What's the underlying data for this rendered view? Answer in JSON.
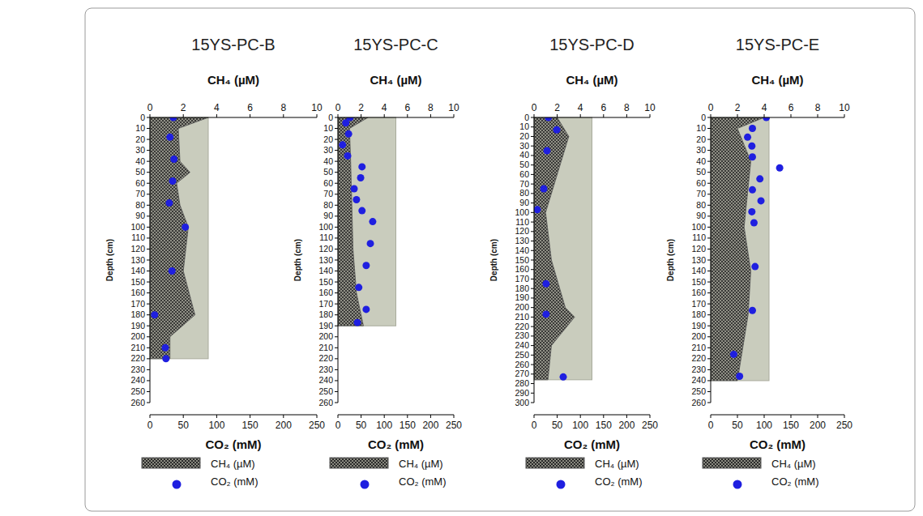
{
  "chart_data": [
    {
      "type": "depth_profile",
      "title": "15YS-PC-B",
      "xlabel": "CH₄ (µM)",
      "x2label": "CO₂ (mM)",
      "ylabel": "Depth (cm)",
      "xlim": [
        0,
        10
      ],
      "xticks": [
        0,
        2,
        4,
        6,
        8,
        10
      ],
      "x2lim": [
        0,
        250
      ],
      "x2ticks": [
        0,
        50,
        100,
        150,
        200,
        250
      ],
      "ylim": [
        0,
        260
      ],
      "yticks": [
        0,
        10,
        20,
        30,
        40,
        50,
        60,
        70,
        80,
        90,
        100,
        110,
        120,
        130,
        140,
        150,
        160,
        170,
        180,
        190,
        200,
        210,
        220,
        230,
        240,
        250,
        260
      ],
      "legend": "bottom",
      "series": [
        {
          "name": "CH₄ (µM)",
          "type": "area",
          "color": "#555555",
          "depth": [
            0,
            10,
            40,
            50,
            60,
            80,
            100,
            140,
            180,
            200,
            220
          ],
          "values": [
            3.5,
            1.7,
            1.8,
            2.4,
            1.6,
            1.8,
            2.3,
            2.0,
            2.7,
            1.2,
            1.2
          ]
        },
        {
          "name": "CO₂ (mM)",
          "type": "scatter",
          "axis": "x2",
          "color": "#1f1fe0",
          "marker": "circle",
          "depth": [
            0,
            18,
            38,
            58,
            78,
            100,
            140,
            180,
            210,
            220
          ],
          "values": [
            35,
            30,
            36,
            34,
            29,
            53,
            33,
            7,
            23,
            24
          ]
        }
      ]
    },
    {
      "type": "depth_profile",
      "title": "15YS-PC-C",
      "xlabel": "CH₄ (µM)",
      "x2label": "CO₂ (mM)",
      "ylabel": "Depth (cm)",
      "xlim": [
        0,
        10
      ],
      "xticks": [
        0,
        2,
        4,
        6,
        8,
        10
      ],
      "x2lim": [
        0,
        250
      ],
      "x2ticks": [
        0,
        50,
        100,
        150,
        200,
        250
      ],
      "ylim": [
        0,
        260
      ],
      "yticks": [
        0,
        10,
        20,
        30,
        40,
        50,
        60,
        70,
        80,
        90,
        100,
        110,
        120,
        130,
        140,
        150,
        160,
        170,
        180,
        190,
        200,
        210,
        220,
        230,
        240,
        250,
        260
      ],
      "legend": "bottom",
      "series": [
        {
          "name": "CH₄ (µM)",
          "type": "area",
          "color": "#555555",
          "depth": [
            0,
            10,
            40,
            80,
            120,
            160,
            180,
            190
          ],
          "values": [
            2.6,
            1.0,
            1.1,
            1.2,
            1.3,
            1.6,
            2.0,
            2.2
          ]
        },
        {
          "name": "CO₂ (mM)",
          "type": "scatter",
          "axis": "x2",
          "color": "#1f1fe0",
          "marker": "circle",
          "depth": [
            0,
            5,
            15,
            25,
            35,
            45,
            55,
            65,
            75,
            85,
            95,
            115,
            135,
            155,
            175,
            187
          ],
          "values": [
            26,
            17,
            23,
            10,
            21,
            52,
            49,
            35,
            40,
            52,
            75,
            70,
            61,
            45,
            61,
            42
          ]
        }
      ]
    },
    {
      "type": "depth_profile",
      "title": "15YS-PC-D",
      "xlabel": "CH₄ (µM)",
      "x2label": "CO₂ (mM)",
      "ylabel": "Depth (cm)",
      "xlim": [
        0,
        10
      ],
      "xticks": [
        0,
        2,
        4,
        6,
        8,
        10
      ],
      "x2lim": [
        0,
        250
      ],
      "x2ticks": [
        0,
        50,
        100,
        150,
        200,
        250
      ],
      "ylim": [
        0,
        300
      ],
      "yticks": [
        0,
        10,
        20,
        30,
        40,
        50,
        60,
        70,
        80,
        90,
        100,
        110,
        120,
        130,
        140,
        150,
        160,
        170,
        180,
        190,
        200,
        210,
        220,
        230,
        240,
        250,
        260,
        270,
        280,
        290,
        300
      ],
      "legend": "bottom",
      "series": [
        {
          "name": "CH₄ (µM)",
          "type": "area",
          "color": "#555555",
          "depth": [
            0,
            20,
            60,
            100,
            150,
            200,
            210,
            240,
            276
          ],
          "values": [
            2.0,
            3.0,
            2.0,
            1.0,
            1.5,
            2.7,
            3.5,
            1.5,
            1.2
          ]
        },
        {
          "name": "CO₂ (mM)",
          "type": "scatter",
          "axis": "x2",
          "color": "#1f1fe0",
          "marker": "circle",
          "depth": [
            0,
            13,
            35,
            75,
            97,
            175,
            207,
            273
          ],
          "values": [
            31,
            49,
            28,
            21,
            7,
            26,
            26,
            63
          ]
        }
      ]
    },
    {
      "type": "depth_profile",
      "title": "15YS-PC-E",
      "xlabel": "CH₄ (µM)",
      "x2label": "CO₂ (mM)",
      "ylabel": "Depth (cm)",
      "xlim": [
        0,
        10
      ],
      "xticks": [
        0,
        2,
        4,
        6,
        8,
        10
      ],
      "x2lim": [
        0,
        250
      ],
      "x2ticks": [
        0,
        50,
        100,
        150,
        200,
        250
      ],
      "ylim": [
        0,
        260
      ],
      "yticks": [
        0,
        10,
        20,
        30,
        40,
        50,
        60,
        70,
        80,
        90,
        100,
        110,
        120,
        130,
        140,
        150,
        160,
        170,
        180,
        190,
        200,
        210,
        220,
        230,
        240,
        250,
        260
      ],
      "legend": "bottom",
      "series": [
        {
          "name": "CH₄ (µM)",
          "type": "area",
          "color": "#555555",
          "depth": [
            0,
            10,
            40,
            100,
            140,
            180,
            240
          ],
          "values": [
            4.0,
            2.0,
            3.0,
            2.5,
            3.0,
            2.8,
            2.0
          ]
        },
        {
          "name": "CO₂ (mM)",
          "type": "scatter",
          "axis": "x2",
          "color": "#1f1fe0",
          "marker": "circle",
          "depth": [
            0,
            10,
            18,
            26,
            36,
            46,
            56,
            66,
            76,
            86,
            96,
            136,
            176,
            216,
            236
          ],
          "values": [
            104,
            78,
            69,
            77,
            78,
            129,
            92,
            78,
            94,
            77,
            81,
            83,
            78,
            43,
            54
          ]
        }
      ]
    }
  ]
}
